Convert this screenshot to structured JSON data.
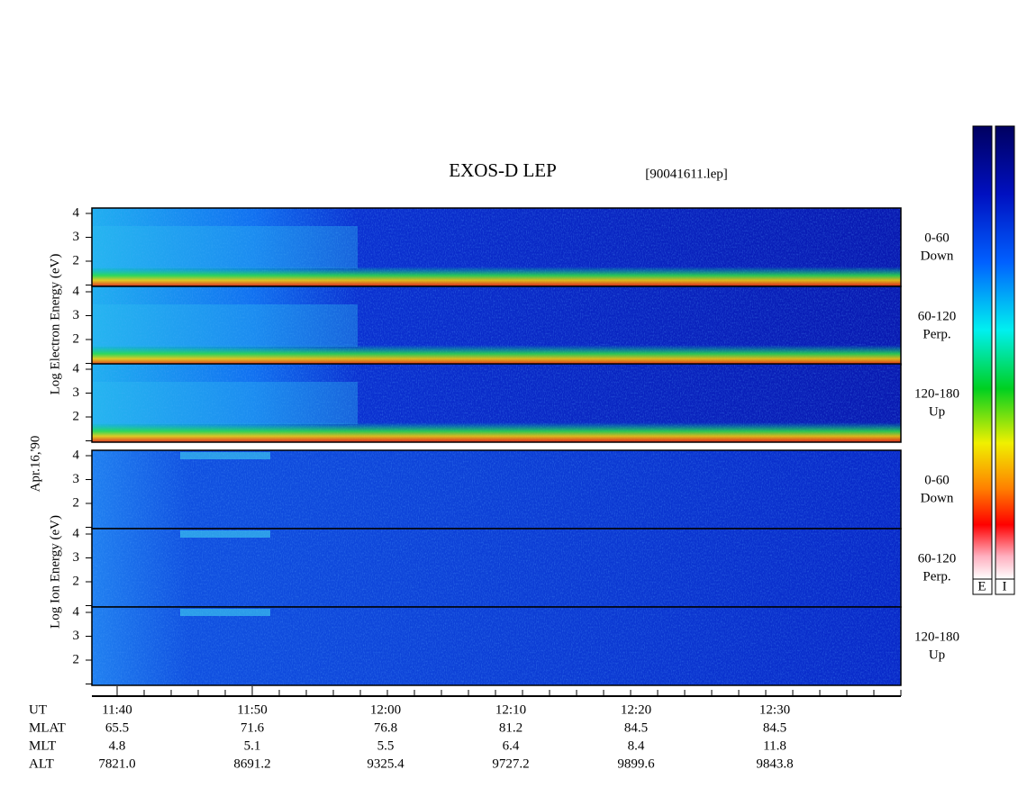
{
  "title": "EXOS-D LEP",
  "file": "[90041611.lep]",
  "date": "Apr.16,'90",
  "electron_axis_label": "Log Electron Energy (eV)",
  "ion_axis_label": "Log Ion Energy (eV)",
  "energy_ticks": [
    4,
    3,
    2
  ],
  "pitch_bins": [
    {
      "range": "0-60",
      "direction": "Down"
    },
    {
      "range": "60-120",
      "direction": "Perp."
    },
    {
      "range": "120-180",
      "direction": "Up"
    }
  ],
  "colorbar_labels": [
    "E",
    "I"
  ],
  "time_table": {
    "row_labels": [
      "UT",
      "MLAT",
      "MLT",
      "ALT"
    ],
    "columns": [
      [
        "11:40",
        "65.5",
        "4.8",
        "7821.0"
      ],
      [
        "11:50",
        "71.6",
        "5.1",
        "8691.2"
      ],
      [
        "12:00",
        "76.8",
        "5.5",
        "9325.4"
      ],
      [
        "12:10",
        "81.2",
        "6.4",
        "9727.2"
      ],
      [
        "12:20",
        "84.5",
        "8.4",
        "9899.6"
      ],
      [
        "12:30",
        "84.5",
        "11.8",
        "9843.8"
      ]
    ]
  }
}
